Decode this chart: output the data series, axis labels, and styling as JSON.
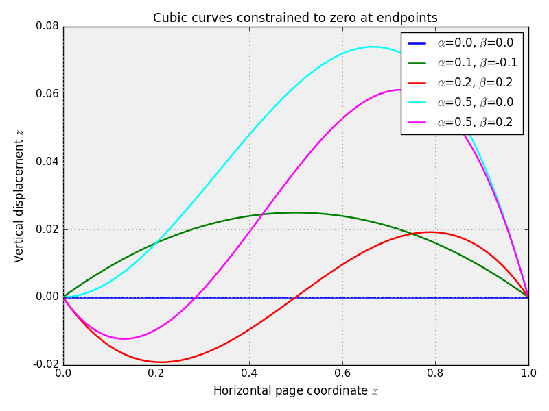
{
  "title": "Cubic curves constrained to zero at endpoints",
  "xlabel": "Horizontal page coordinate $x$",
  "ylabel": "Vertical displacement $z$",
  "xlim": [
    0.0,
    1.0
  ],
  "ylim": [
    -0.02,
    0.08
  ],
  "curves": [
    {
      "alpha": 0.0,
      "beta": 0.0,
      "color": "blue",
      "label": "$\\alpha$=0.0, $\\beta$=0.0"
    },
    {
      "alpha": 0.1,
      "beta": -0.1,
      "color": "green",
      "label": "$\\alpha$=0.1, $\\beta$=-0.1"
    },
    {
      "alpha": 0.2,
      "beta": 0.2,
      "color": "red",
      "label": "$\\alpha$=0.2, $\\beta$=0.2"
    },
    {
      "alpha": 0.5,
      "beta": 0.0,
      "color": "cyan",
      "label": "$\\alpha$=0.5, $\\beta$=0.0"
    },
    {
      "alpha": 0.5,
      "beta": 0.2,
      "color": "magenta",
      "label": "$\\alpha$=0.5, $\\beta$=0.2"
    }
  ],
  "grid_color": "#aaaaaa",
  "grid_linestyle": ":",
  "figsize": [
    8.0,
    6.0
  ],
  "dpi": 100,
  "xticks": [
    0.0,
    0.2,
    0.4,
    0.6,
    0.8,
    1.0
  ],
  "yticks": [
    -0.02,
    0.0,
    0.02,
    0.04,
    0.06,
    0.08
  ],
  "legend_loc": "upper right",
  "legend_fontsize": 12,
  "title_fontsize": 13,
  "axis_label_fontsize": 12,
  "background_color": "#f0f0f0",
  "line_width": 1.8
}
